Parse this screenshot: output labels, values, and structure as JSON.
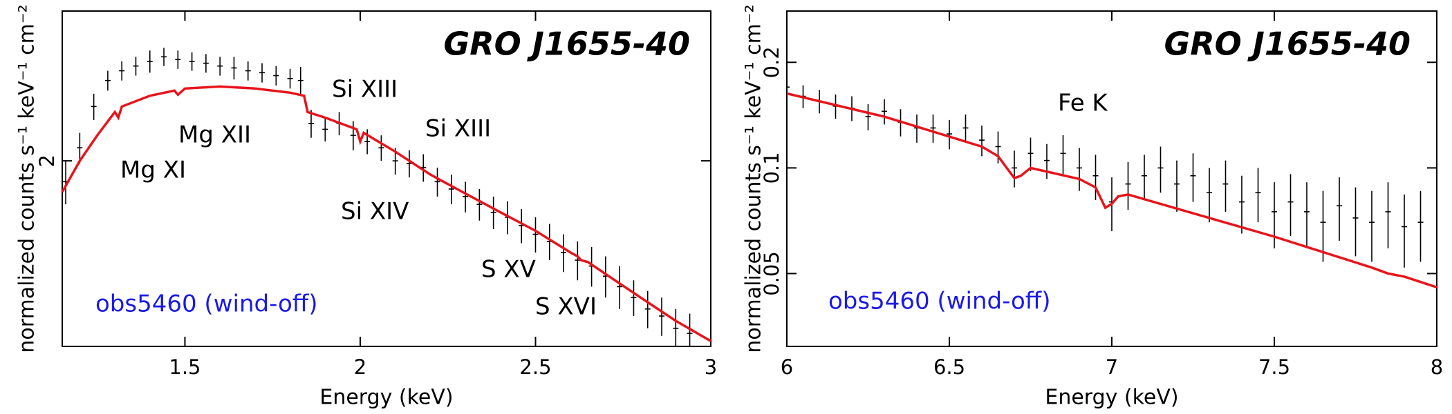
{
  "chart_data": [
    {
      "type": "spectrum",
      "title": "GRO J1655-40",
      "xlabel": "Energy (keV)",
      "ylabel": "normalized counts s⁻¹ keV⁻¹ cm⁻²",
      "xlim": [
        1.15,
        3.0
      ],
      "xticks": [
        1.5,
        2,
        2.5,
        3
      ],
      "ylim": [
        1,
        3.5
      ],
      "yticks": [
        2
      ],
      "yscale": "log",
      "data": {
        "color": "#000000",
        "x": [
          1.16,
          1.2,
          1.24,
          1.28,
          1.32,
          1.36,
          1.4,
          1.44,
          1.48,
          1.52,
          1.56,
          1.6,
          1.64,
          1.68,
          1.72,
          1.76,
          1.8,
          1.83,
          1.86,
          1.9,
          1.94,
          1.98,
          2.02,
          2.06,
          2.1,
          2.14,
          2.18,
          2.22,
          2.26,
          2.3,
          2.34,
          2.38,
          2.42,
          2.46,
          2.5,
          2.54,
          2.58,
          2.62,
          2.66,
          2.7,
          2.74,
          2.78,
          2.82,
          2.86,
          2.9,
          2.94
        ],
        "values": [
          1.85,
          2.1,
          2.45,
          2.7,
          2.8,
          2.85,
          2.9,
          2.95,
          2.92,
          2.9,
          2.88,
          2.85,
          2.83,
          2.8,
          2.78,
          2.75,
          2.72,
          2.7,
          2.3,
          2.25,
          2.3,
          2.2,
          2.15,
          2.1,
          2.0,
          1.98,
          1.95,
          1.85,
          1.8,
          1.75,
          1.7,
          1.65,
          1.62,
          1.57,
          1.52,
          1.48,
          1.42,
          1.38,
          1.35,
          1.3,
          1.25,
          1.2,
          1.15,
          1.12,
          1.07,
          1.05
        ],
        "errors": [
          0.15,
          0.12,
          0.12,
          0.1,
          0.1,
          0.1,
          0.12,
          0.1,
          0.1,
          0.1,
          0.1,
          0.1,
          0.12,
          0.1,
          0.1,
          0.1,
          0.1,
          0.14,
          0.12,
          0.1,
          0.1,
          0.12,
          0.1,
          0.1,
          0.1,
          0.1,
          0.1,
          0.1,
          0.1,
          0.1,
          0.1,
          0.1,
          0.1,
          0.1,
          0.1,
          0.1,
          0.1,
          0.1,
          0.1,
          0.1,
          0.1,
          0.08,
          0.08,
          0.08,
          0.08,
          0.08
        ]
      },
      "model": {
        "color": "#e8141b",
        "x": [
          1.15,
          1.2,
          1.25,
          1.3,
          1.31,
          1.32,
          1.4,
          1.47,
          1.48,
          1.5,
          1.6,
          1.7,
          1.8,
          1.84,
          1.85,
          1.9,
          1.99,
          2.0,
          2.01,
          2.1,
          2.2,
          2.3,
          2.4,
          2.5,
          2.6,
          2.62,
          2.63,
          2.65,
          2.7,
          2.8,
          2.9,
          3.0
        ],
        "values": [
          1.78,
          2.0,
          2.2,
          2.4,
          2.35,
          2.45,
          2.55,
          2.6,
          2.56,
          2.62,
          2.64,
          2.62,
          2.58,
          2.55,
          2.4,
          2.35,
          2.25,
          2.15,
          2.22,
          2.07,
          1.9,
          1.77,
          1.65,
          1.54,
          1.42,
          1.4,
          1.38,
          1.37,
          1.31,
          1.2,
          1.1,
          1.02
        ]
      },
      "annotations": [
        "Mg XI",
        "Mg XII",
        "Si XIII",
        "Si XIII",
        "Si XIV",
        "S XV",
        "S XVI"
      ],
      "label": "obs5460 (wind-off)",
      "label_color": "#1a1ae6"
    },
    {
      "type": "spectrum",
      "title": "GRO J1655-40",
      "xlabel": "Energy (keV)",
      "ylabel": "normalized counts s⁻¹ keV⁻¹ cm⁻²",
      "xlim": [
        6,
        8
      ],
      "xticks": [
        6,
        6.5,
        7,
        7.5,
        8
      ],
      "ylim": [
        0.031,
        0.28
      ],
      "yticks": [
        0.05,
        0.1,
        0.2
      ],
      "yscale": "log",
      "data": {
        "color": "#000000",
        "x": [
          6.0,
          6.05,
          6.1,
          6.15,
          6.2,
          6.25,
          6.3,
          6.35,
          6.4,
          6.45,
          6.5,
          6.55,
          6.6,
          6.65,
          6.7,
          6.75,
          6.8,
          6.85,
          6.9,
          6.95,
          7.0,
          7.05,
          7.1,
          7.15,
          7.2,
          7.25,
          7.3,
          7.35,
          7.4,
          7.45,
          7.5,
          7.55,
          7.6,
          7.65,
          7.7,
          7.75,
          7.8,
          7.85,
          7.9,
          7.95
        ],
        "values": [
          0.17,
          0.16,
          0.155,
          0.15,
          0.148,
          0.14,
          0.145,
          0.135,
          0.13,
          0.13,
          0.125,
          0.13,
          0.12,
          0.115,
          0.1,
          0.11,
          0.105,
          0.11,
          0.1,
          0.095,
          0.08,
          0.09,
          0.095,
          0.1,
          0.09,
          0.095,
          0.085,
          0.09,
          0.08,
          0.085,
          0.075,
          0.08,
          0.075,
          0.07,
          0.078,
          0.072,
          0.07,
          0.075,
          0.068,
          0.07
        ],
        "errors": [
          0.012,
          0.012,
          0.012,
          0.012,
          0.012,
          0.012,
          0.012,
          0.012,
          0.012,
          0.012,
          0.012,
          0.012,
          0.012,
          0.012,
          0.012,
          0.012,
          0.012,
          0.014,
          0.014,
          0.014,
          0.014,
          0.014,
          0.014,
          0.015,
          0.015,
          0.015,
          0.015,
          0.015,
          0.015,
          0.015,
          0.016,
          0.016,
          0.016,
          0.016,
          0.016,
          0.016,
          0.016,
          0.016,
          0.016,
          0.016
        ]
      },
      "model": {
        "color": "#e8141b",
        "x": [
          6,
          6.3,
          6.6,
          6.65,
          6.7,
          6.72,
          6.75,
          6.9,
          6.95,
          6.98,
          7.0,
          7.02,
          7.05,
          7.5,
          7.8,
          7.85,
          7.9,
          8
        ],
        "values": [
          0.163,
          0.14,
          0.115,
          0.108,
          0.0935,
          0.095,
          0.1,
          0.093,
          0.088,
          0.077,
          0.079,
          0.083,
          0.084,
          0.0637,
          0.052,
          0.05,
          0.049,
          0.0457
        ]
      },
      "annotations": [
        "Fe K"
      ],
      "label": "obs5460 (wind-off)",
      "label_color": "#1a1ae6"
    }
  ]
}
